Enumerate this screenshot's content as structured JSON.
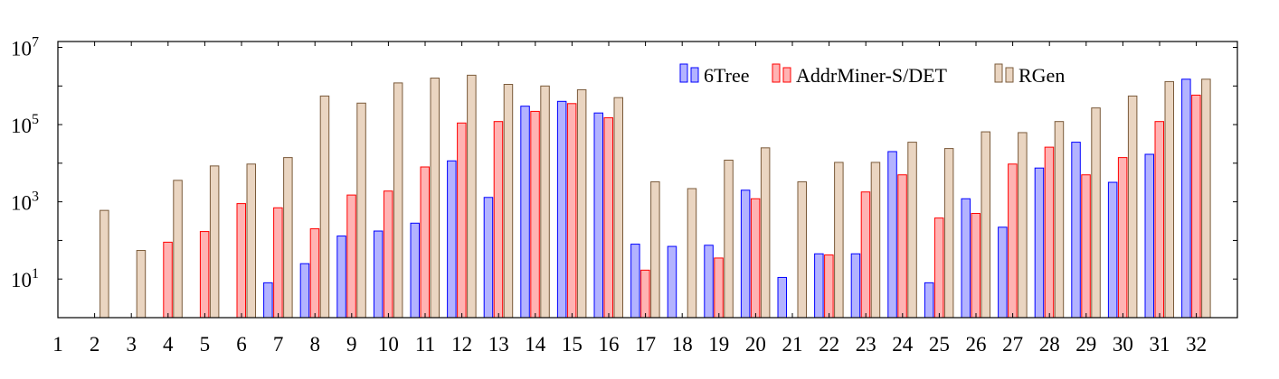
{
  "chart_data": {
    "type": "bar",
    "title": "",
    "xlabel": "",
    "ylabel": "",
    "y_scale": "log",
    "ylim": [
      1,
      10000000
    ],
    "ytick_values": [
      10,
      1000,
      100000,
      10000000
    ],
    "ytick_exponents": [
      "1",
      "3",
      "5",
      "7"
    ],
    "ytick_base": "10",
    "grid": false,
    "legend_position": "top-right",
    "categories": [
      "1",
      "2",
      "3",
      "4",
      "5",
      "6",
      "7",
      "8",
      "9",
      "10",
      "11",
      "12",
      "13",
      "14",
      "15",
      "16",
      "17",
      "18",
      "19",
      "20",
      "21",
      "22",
      "23",
      "24",
      "25",
      "26",
      "27",
      "28",
      "29",
      "30",
      "31",
      "32"
    ],
    "series": [
      {
        "name": "6Tree",
        "color": "#b3b3ff",
        "stroke": "#0000ff",
        "values": [
          null,
          1,
          1,
          1,
          1,
          1,
          8,
          25,
          130,
          175,
          280,
          11500,
          1300,
          300000,
          400000,
          200000,
          80,
          70,
          75,
          2000,
          11,
          45,
          45,
          20000,
          8,
          1200,
          220,
          7500,
          35000,
          3200,
          17000,
          1500000
        ]
      },
      {
        "name": "AddrMiner-S/DET",
        "color": "#ffb3b3",
        "stroke": "#ff0000",
        "values": [
          null,
          null,
          null,
          90,
          170,
          900,
          700,
          200,
          1500,
          1900,
          8000,
          110000,
          120000,
          220000,
          350000,
          150000,
          17,
          null,
          35,
          1200,
          null,
          42,
          1800,
          5000,
          380,
          500,
          9500,
          26000,
          5000,
          14000,
          120000,
          580000
        ]
      },
      {
        "name": "RGen",
        "color": "#ead5c1",
        "stroke": "#7a5a3a",
        "values": [
          null,
          600,
          55,
          3600,
          8500,
          9500,
          14000,
          550000,
          360000,
          1200000,
          1600000,
          1900000,
          1100000,
          1000000,
          800000,
          500000,
          3300,
          2200,
          12000,
          25000,
          3300,
          10500,
          10500,
          35000,
          24000,
          65000,
          62000,
          120000,
          270000,
          550000,
          1300000,
          1500000
        ]
      }
    ]
  }
}
